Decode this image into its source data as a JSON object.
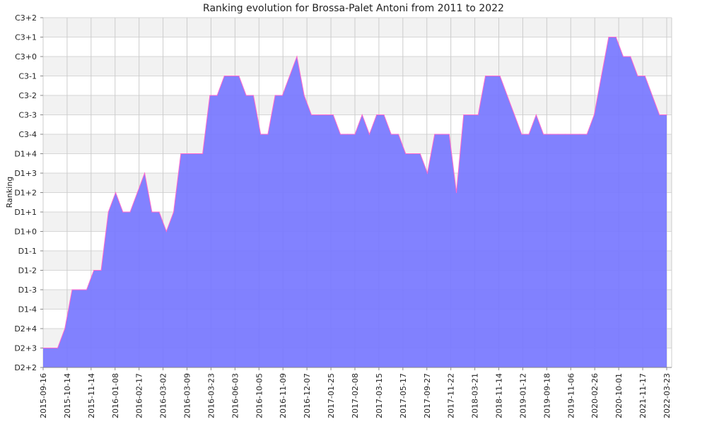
{
  "chart_data": {
    "type": "area",
    "title": "Ranking evolution for Brossa-Palet Antoni from 2011 to 2022",
    "xlabel": "",
    "ylabel": "Ranking",
    "grid": true,
    "legend": "none",
    "y_ticks": [
      "D2+2",
      "D2+3",
      "D2+4",
      "D1-4",
      "D1-3",
      "D1-2",
      "D1-1",
      "D1+0",
      "D1+1",
      "D1+2",
      "D1+3",
      "D1+4",
      "C3-4",
      "C3-3",
      "C3-2",
      "C3-1",
      "C3+0",
      "C3+1",
      "C3+2"
    ],
    "x_ticks": [
      "2015-09-16",
      "2015-10-14",
      "2015-11-14",
      "2016-01-08",
      "2016-02-17",
      "2016-03-02",
      "2016-03-09",
      "2016-03-23",
      "2016-06-03",
      "2016-10-05",
      "2016-11-09",
      "2016-12-07",
      "2017-01-25",
      "2017-02-08",
      "2017-03-15",
      "2017-05-17",
      "2017-09-27",
      "2017-11-22",
      "2018-03-21",
      "2018-11-14",
      "2019-01-12",
      "2019-09-18",
      "2019-11-06",
      "2020-02-26",
      "2020-10-01",
      "2021-11-17",
      "2022-03-23"
    ],
    "ylim": [
      0,
      18
    ],
    "series": [
      {
        "fill_color": "#7777ff",
        "line_color": "#ff66cc",
        "values": [
          1,
          1,
          1,
          2,
          4,
          4,
          4,
          5,
          5,
          8,
          9,
          8,
          8,
          9,
          10,
          8,
          8,
          7,
          8,
          11,
          11,
          11,
          11,
          14,
          14,
          15,
          15,
          15,
          14,
          14,
          12,
          12,
          14,
          14,
          15,
          16,
          14,
          13,
          13,
          13,
          13,
          12,
          12,
          12,
          13,
          12,
          13,
          13,
          12,
          12,
          11,
          11,
          11,
          10,
          12,
          12,
          12,
          9,
          13,
          13,
          13,
          15,
          15,
          15,
          14,
          13,
          12,
          12,
          13,
          12,
          12,
          12,
          12,
          12,
          12,
          12,
          13,
          15,
          17,
          17,
          16,
          16,
          15,
          15,
          14,
          13,
          13
        ]
      }
    ]
  }
}
